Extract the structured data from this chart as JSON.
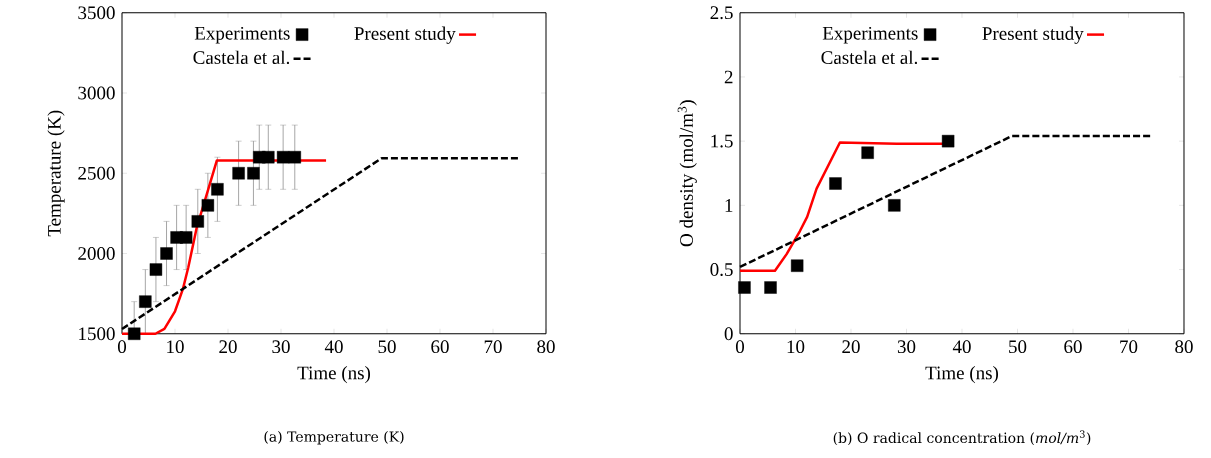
{
  "chart_data": [
    {
      "type": "line",
      "title": "(a) Temperature (K)",
      "xlabel": "Time (ns)",
      "ylabel": "Temperature (K)",
      "xlim": [
        0,
        80
      ],
      "ylim": [
        1500,
        3500
      ],
      "xticks": [
        0,
        10,
        20,
        30,
        40,
        50,
        60,
        70,
        80
      ],
      "yticks": [
        1500,
        2000,
        2500,
        3000,
        3500
      ],
      "legend": "top",
      "grid": false,
      "series": [
        {
          "name": "Experiments",
          "type": "scatter",
          "marker": "square",
          "color": "#000000",
          "x": [
            2.3,
            4.4,
            6.4,
            8.4,
            10.3,
            12.1,
            14.3,
            16.2,
            18.0,
            22.0,
            24.8,
            25.9,
            27.6,
            30.4,
            32.6
          ],
          "values": [
            1500,
            1700,
            1900,
            2000,
            2100,
            2100,
            2200,
            2300,
            2400,
            2500,
            2500,
            2600,
            2600,
            2600,
            2600
          ],
          "errors": [
            [
              1500,
              1700
            ],
            200,
            200,
            200,
            200,
            200,
            200,
            200,
            200,
            200,
            200,
            200,
            200,
            200,
            200
          ]
        },
        {
          "name": "Present study",
          "type": "line",
          "marker": "none",
          "line_style": "solid",
          "color": "#ff0000",
          "x": [
            0,
            6.3,
            8,
            10,
            11.5,
            12.5,
            14.1,
            16,
            17.9,
            38.5
          ],
          "values": [
            1500,
            1500,
            1530,
            1640,
            1780,
            1913,
            2162,
            2370,
            2580,
            2580
          ]
        },
        {
          "name": "Castela et al.",
          "type": "line",
          "marker": "none",
          "line_style": "dashed",
          "color": "#000000",
          "x": [
            0,
            49,
            74.7
          ],
          "values": [
            1530,
            2594,
            2594
          ]
        }
      ]
    },
    {
      "type": "line",
      "title": "(b) O radical concentration (*mol/m*$^{3}$)",
      "xlabel": "Time (ns)",
      "ylabel": "O density (mol/m$^{3}$)",
      "xlim": [
        0,
        80
      ],
      "ylim": [
        0,
        2.5
      ],
      "xticks": [
        0,
        10,
        20,
        30,
        40,
        50,
        60,
        70,
        80
      ],
      "yticks": [
        0,
        0.5,
        1,
        1.5,
        2,
        2.5
      ],
      "legend": "top",
      "grid": false,
      "series": [
        {
          "name": "Experiments",
          "type": "scatter",
          "marker": "square",
          "color": "#000000",
          "x": [
            0.8,
            5.5,
            10.3,
            17.2,
            23.0,
            27.8,
            37.5
          ],
          "values": [
            0.36,
            0.36,
            0.53,
            1.17,
            1.41,
            1.0,
            1.5
          ]
        },
        {
          "name": "Present study",
          "type": "line",
          "marker": "none",
          "line_style": "solid",
          "color": "#ff0000",
          "x": [
            0,
            6.3,
            8.4,
            10.8,
            12.1,
            13.8,
            18.0,
            28.2,
            38.4
          ],
          "values": [
            0.49,
            0.49,
            0.62,
            0.8,
            0.91,
            1.13,
            1.49,
            1.48,
            1.48
          ]
        },
        {
          "name": "Castela et al.",
          "type": "line",
          "marker": "none",
          "line_style": "dashed",
          "color": "#000000",
          "x": [
            0,
            49,
            73.9
          ],
          "values": [
            0.52,
            1.54,
            1.54
          ]
        }
      ]
    }
  ]
}
